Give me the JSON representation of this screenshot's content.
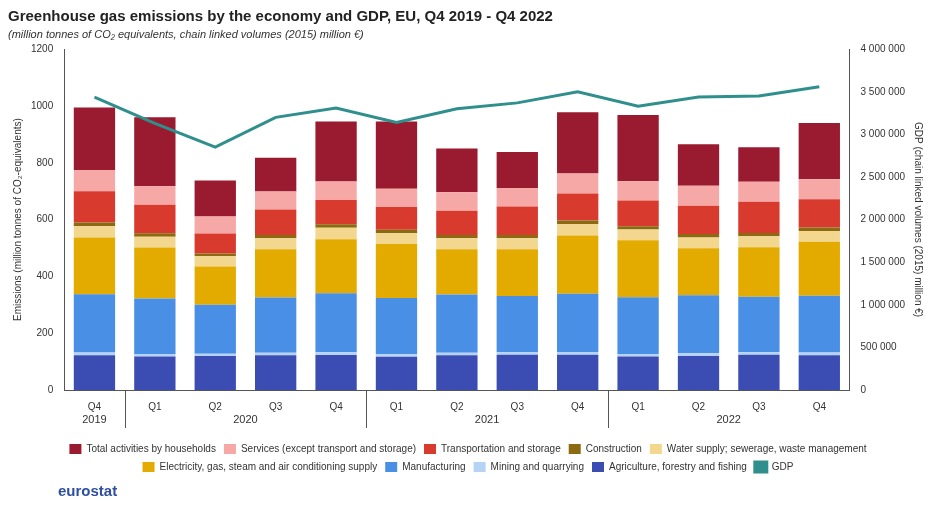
{
  "chart_data": {
    "type": "bar",
    "stacked": true,
    "grid": false,
    "legend": "bottom",
    "title": "Greenhouse gas emissions by the economy and GDP, EU, Q4 2019 - Q4 2022",
    "subtitle": "(million tonnes of CO₂ equivalents, chain linked volumes (2015) million €)",
    "y_label": "Emissions (million tonnes of CO₂-equivalents)",
    "y2_label": "GDP (chain linked volumes (2015) million €)",
    "annotations": [
      "eurostat"
    ],
    "categories": [
      "Q4",
      "Q1",
      "Q2",
      "Q3",
      "Q4",
      "Q1",
      "Q2",
      "Q3",
      "Q4",
      "Q1",
      "Q2",
      "Q3",
      "Q4"
    ],
    "x_groups": [
      {
        "name": "2019",
        "count": 1
      },
      {
        "name": "2020",
        "count": 4
      },
      {
        "name": "2021",
        "count": 4
      },
      {
        "name": "2022",
        "count": 4
      }
    ],
    "ylim": [
      0,
      1200
    ],
    "yticks": [
      0,
      200,
      400,
      600,
      800,
      1000,
      1200
    ],
    "y2lim": [
      0,
      4000000
    ],
    "y2ticks": [
      0,
      {
        "value": 500000,
        "label": "500 000"
      },
      {
        "value": 1000000,
        "label": "1 000 000"
      },
      {
        "value": 1500000,
        "label": "1 500 000"
      },
      {
        "value": 2000000,
        "label": "2 000 000"
      },
      {
        "value": 2500000,
        "label": "2 500 000"
      },
      {
        "value": 3000000,
        "label": "3 000 000"
      },
      {
        "value": 3500000,
        "label": "3 500 000"
      },
      {
        "value": 4000000,
        "label": "4 000 000"
      }
    ],
    "series": [
      {
        "name": "GDP",
        "type": "line",
        "axis": "y2",
        "color": "#2f8f8c",
        "values": [
          3438000,
          3130000,
          2850000,
          3200000,
          3310000,
          3140000,
          3300000,
          3370000,
          3500000,
          3330000,
          3440000,
          3450000,
          3560000
        ]
      },
      {
        "name": "Agriculture, forestry and fishing",
        "color": "#3b4db3",
        "values": [
          122,
          118,
          120,
          122,
          123,
          117,
          122,
          124,
          124,
          118,
          120,
          124,
          122
        ]
      },
      {
        "name": "Mining and quarrying",
        "color": "#b5d3f5",
        "values": [
          10,
          9,
          8,
          9,
          10,
          9,
          9,
          9,
          10,
          9,
          9,
          9,
          10
        ]
      },
      {
        "name": "Manufacturing",
        "color": "#4a8fe6",
        "values": [
          205,
          195,
          172,
          195,
          208,
          198,
          205,
          198,
          205,
          200,
          205,
          195,
          200
        ]
      },
      {
        "name": "Electricity, gas, steam and air conditioning supply",
        "color": "#e3ab00",
        "values": [
          200,
          180,
          135,
          170,
          190,
          190,
          160,
          165,
          205,
          200,
          165,
          175,
          190
        ]
      },
      {
        "name": "Water supply; sewerage, waste management",
        "color": "#f3d78e",
        "values": [
          40,
          38,
          36,
          38,
          40,
          38,
          38,
          38,
          40,
          38,
          38,
          38,
          38
        ]
      },
      {
        "name": "Construction",
        "color": "#8c6a12",
        "values": [
          13,
          12,
          10,
          12,
          13,
          12,
          12,
          12,
          13,
          12,
          12,
          12,
          12
        ]
      },
      {
        "name": "Transportation and storage",
        "color": "#d93a2e",
        "values": [
          110,
          100,
          70,
          90,
          85,
          80,
          85,
          100,
          95,
          90,
          100,
          110,
          100
        ]
      },
      {
        "name": "Services (except transport and storage)",
        "color": "#f5a8a6",
        "values": [
          75,
          65,
          60,
          63,
          65,
          65,
          65,
          65,
          70,
          68,
          70,
          70,
          70
        ]
      },
      {
        "name": "Total activities by households",
        "color": "#9a1a2f",
        "values": [
          220,
          243,
          127,
          119,
          211,
          236,
          154,
          127,
          216,
          233,
          146,
          122,
          198
        ]
      }
    ]
  }
}
